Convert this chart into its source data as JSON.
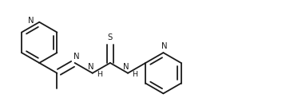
{
  "bg_color": "#ffffff",
  "line_color": "#1a1a1a",
  "lw": 1.3,
  "fs": 6.8,
  "fig_w": 3.58,
  "fig_h": 1.28,
  "dpi": 100,
  "xlim": [
    0.0,
    10.0
  ],
  "ylim": [
    0.0,
    3.6
  ],
  "ring_r": 0.72,
  "dbl_off": 0.13,
  "dbl_shrink": 0.12
}
